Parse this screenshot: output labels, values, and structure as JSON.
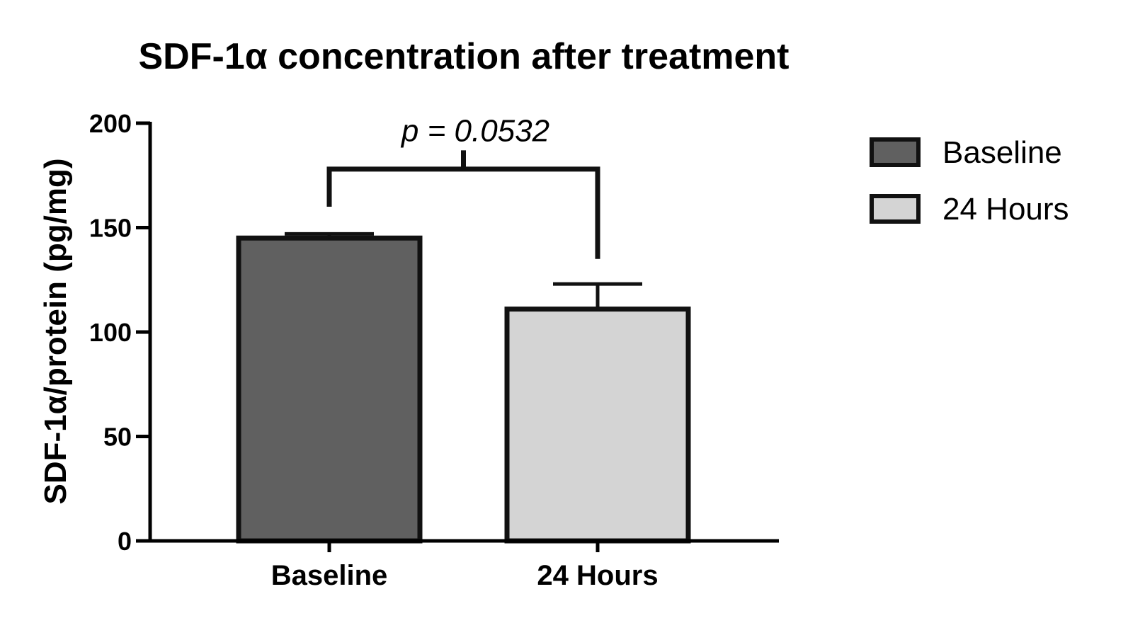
{
  "chart_data": {
    "type": "bar",
    "title": "SDF-1α concentration after treatment",
    "ylabel": "SDF-1α/protein (pg/mg)",
    "xlabel": "",
    "ylim": [
      0,
      200
    ],
    "yticks": [
      0,
      50,
      100,
      150,
      200
    ],
    "categories": [
      "Baseline",
      "24 Hours"
    ],
    "values": [
      145,
      111
    ],
    "error_upper": [
      147,
      123
    ],
    "colors": [
      "#606060",
      "#d4d4d4"
    ],
    "outline_color": "#111111",
    "legend": {
      "placement": "right",
      "entries": [
        "Baseline",
        "24 Hours"
      ]
    },
    "annotation": {
      "text": "p = 0.0532",
      "between": [
        "Baseline",
        "24 Hours"
      ]
    },
    "grid": false
  }
}
